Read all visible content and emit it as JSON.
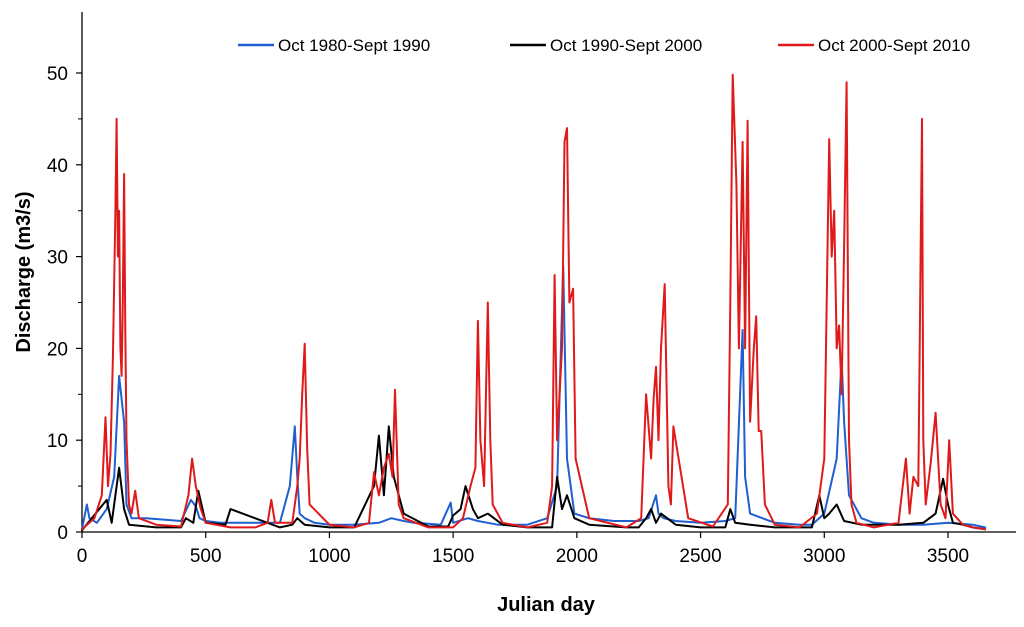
{
  "chart_data": {
    "type": "line",
    "title": "",
    "xlabel": "Julian day",
    "ylabel": "Discharge (m3/s)",
    "xlim": [
      0,
      3800
    ],
    "ylim": [
      0,
      55
    ],
    "xticks": [
      0,
      500,
      1000,
      1500,
      2000,
      2500,
      3000,
      3500
    ],
    "yticks": [
      0,
      10,
      20,
      30,
      40,
      50
    ],
    "grid": false,
    "legend_position": "top",
    "series": [
      {
        "name": "Oct 1980-Sept 1990",
        "color": "#1f5fd0",
        "x": [
          0,
          20,
          30,
          60,
          100,
          130,
          150,
          170,
          180,
          200,
          260,
          400,
          440,
          460,
          475,
          500,
          560,
          700,
          800,
          840,
          860,
          870,
          880,
          900,
          940,
          1000,
          1100,
          1200,
          1250,
          1300,
          1340,
          1400,
          1450,
          1490,
          1500,
          1560,
          1600,
          1640,
          1680,
          1800,
          1880,
          1920,
          1945,
          1960,
          1990,
          2050,
          2150,
          2250,
          2290,
          2320,
          2330,
          2350,
          2400,
          2500,
          2600,
          2640,
          2670,
          2680,
          2700,
          2800,
          2900,
          2950,
          3000,
          3050,
          3070,
          3080,
          3100,
          3150,
          3200,
          3300,
          3400,
          3500,
          3600,
          3650
        ],
        "y": [
          0.3,
          3.0,
          1.5,
          1.0,
          2.5,
          6.0,
          17.0,
          12.0,
          3.0,
          1.5,
          1.5,
          1.2,
          3.5,
          2.8,
          1.5,
          1.2,
          1.0,
          1.0,
          1.0,
          5.0,
          11.5,
          6.0,
          2.0,
          1.5,
          1.0,
          0.8,
          0.8,
          1.0,
          1.5,
          1.2,
          1.0,
          0.9,
          0.8,
          3.2,
          1.0,
          1.5,
          1.2,
          1.0,
          0.8,
          0.8,
          1.5,
          5.0,
          29.0,
          8.0,
          2.0,
          1.5,
          1.2,
          1.2,
          1.5,
          4.0,
          2.0,
          1.5,
          1.2,
          1.0,
          1.2,
          1.5,
          22.0,
          6.0,
          2.0,
          1.0,
          0.8,
          0.8,
          2.0,
          8.0,
          19.0,
          12.0,
          4.0,
          1.5,
          1.0,
          0.8,
          0.8,
          1.0,
          0.8,
          0.5
        ]
      },
      {
        "name": "Oct 1990-Sept 2000",
        "color": "#000000",
        "x": [
          0,
          100,
          120,
          150,
          170,
          190,
          300,
          400,
          420,
          450,
          470,
          500,
          580,
          600,
          800,
          850,
          870,
          900,
          1000,
          1100,
          1180,
          1200,
          1220,
          1240,
          1260,
          1300,
          1400,
          1480,
          1500,
          1530,
          1550,
          1580,
          1600,
          1640,
          1700,
          1800,
          1900,
          1920,
          1940,
          1960,
          1990,
          2050,
          2200,
          2250,
          2280,
          2300,
          2320,
          2340,
          2400,
          2500,
          2600,
          2620,
          2640,
          2700,
          2800,
          2950,
          2980,
          3000,
          3020,
          3050,
          3080,
          3150,
          3300,
          3400,
          3450,
          3480,
          3500,
          3520,
          3560,
          3600,
          3650
        ],
        "y": [
          0.2,
          3.5,
          1.0,
          7.0,
          2.5,
          0.8,
          0.5,
          0.5,
          1.5,
          1.0,
          4.5,
          1.0,
          0.8,
          2.5,
          0.5,
          0.8,
          1.5,
          0.8,
          0.5,
          0.5,
          5.0,
          10.5,
          4.0,
          11.5,
          6.0,
          2.0,
          0.6,
          0.6,
          1.8,
          2.5,
          5.0,
          2.5,
          1.5,
          2.0,
          0.8,
          0.5,
          0.5,
          6.0,
          2.5,
          4.0,
          1.5,
          0.8,
          0.5,
          0.5,
          1.5,
          2.5,
          1.0,
          2.0,
          0.8,
          0.5,
          0.5,
          2.5,
          1.0,
          0.8,
          0.5,
          0.5,
          4.0,
          1.5,
          2.0,
          3.0,
          1.2,
          0.8,
          0.8,
          1.0,
          2.0,
          5.8,
          3.0,
          1.0,
          0.8,
          0.5,
          0.3
        ]
      },
      {
        "name": "Oct 2000-Sept 2010",
        "color": "#e01a1a",
        "x": [
          0,
          50,
          80,
          95,
          105,
          115,
          125,
          135,
          140,
          145,
          150,
          155,
          160,
          165,
          170,
          175,
          180,
          190,
          200,
          215,
          230,
          300,
          400,
          430,
          445,
          460,
          480,
          500,
          600,
          700,
          750,
          765,
          780,
          850,
          870,
          880,
          890,
          900,
          910,
          920,
          1000,
          1100,
          1160,
          1180,
          1200,
          1220,
          1240,
          1255,
          1265,
          1280,
          1300,
          1400,
          1500,
          1540,
          1570,
          1590,
          1600,
          1610,
          1625,
          1640,
          1650,
          1660,
          1700,
          1800,
          1880,
          1900,
          1910,
          1920,
          1940,
          1950,
          1960,
          1970,
          1985,
          1995,
          2050,
          2200,
          2260,
          2280,
          2300,
          2310,
          2320,
          2330,
          2340,
          2355,
          2370,
          2380,
          2390,
          2450,
          2550,
          2610,
          2620,
          2630,
          2645,
          2655,
          2670,
          2680,
          2690,
          2700,
          2715,
          2725,
          2735,
          2745,
          2760,
          2800,
          2900,
          2970,
          3000,
          3020,
          3030,
          3040,
          3050,
          3060,
          3070,
          3080,
          3090,
          3100,
          3110,
          3130,
          3200,
          3300,
          3330,
          3345,
          3360,
          3380,
          3395,
          3400,
          3410,
          3430,
          3450,
          3470,
          3490,
          3505,
          3520,
          3560,
          3600,
          3650
        ],
        "y": [
          0.3,
          1.5,
          4.0,
          12.5,
          5.0,
          8.5,
          19.0,
          35.0,
          45.0,
          30.0,
          35.0,
          20.0,
          17.0,
          25.0,
          39.0,
          22.0,
          10.0,
          3.0,
          2.0,
          4.5,
          1.5,
          0.8,
          0.6,
          4.0,
          8.0,
          5.0,
          2.5,
          1.0,
          0.5,
          0.5,
          1.0,
          3.5,
          1.0,
          1.0,
          5.0,
          8.0,
          15.0,
          20.5,
          9.0,
          3.0,
          0.8,
          0.5,
          1.0,
          6.5,
          4.0,
          7.0,
          8.5,
          6.0,
          15.5,
          3.0,
          1.5,
          0.5,
          0.5,
          1.5,
          5.0,
          7.0,
          23.0,
          10.0,
          5.0,
          25.0,
          10.0,
          3.0,
          1.0,
          0.5,
          1.0,
          5.0,
          28.0,
          10.0,
          20.0,
          42.5,
          44.0,
          25.0,
          26.5,
          8.0,
          1.5,
          0.5,
          1.5,
          15.0,
          8.0,
          14.5,
          18.0,
          10.0,
          20.0,
          27.0,
          5.0,
          3.0,
          11.5,
          1.5,
          0.6,
          3.0,
          25.0,
          49.8,
          38.0,
          20.0,
          42.5,
          20.0,
          44.8,
          12.0,
          20.0,
          23.5,
          11.0,
          11.0,
          3.0,
          0.8,
          0.5,
          2.0,
          8.0,
          42.8,
          30.0,
          35.0,
          20.0,
          22.5,
          15.0,
          31.0,
          49.0,
          10.0,
          3.0,
          1.0,
          0.5,
          1.0,
          8.0,
          2.0,
          6.0,
          5.0,
          45.0,
          10.0,
          3.0,
          7.5,
          13.0,
          3.0,
          1.5,
          10.0,
          2.0,
          0.8,
          0.5,
          0.3
        ]
      }
    ]
  }
}
